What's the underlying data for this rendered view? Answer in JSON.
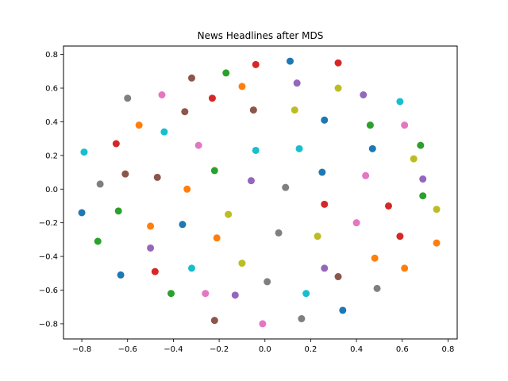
{
  "chart_data": {
    "type": "scatter",
    "title": "News Headlines after MDS",
    "xlabel": "",
    "ylabel": "",
    "xlim": [
      -0.88,
      0.84
    ],
    "ylim": [
      -0.89,
      0.85
    ],
    "grid": false,
    "xticks": [
      -0.8,
      -0.6,
      -0.4,
      -0.2,
      0.0,
      0.2,
      0.4,
      0.6,
      0.8
    ],
    "yticks": [
      -0.8,
      -0.6,
      -0.4,
      -0.2,
      0.0,
      0.2,
      0.4,
      0.6,
      0.8
    ],
    "xtick_labels": [
      "−0.8",
      "−0.6",
      "−0.4",
      "−0.2",
      "0.0",
      "0.2",
      "0.4",
      "0.6",
      "0.8"
    ],
    "ytick_labels": [
      "−0.8",
      "−0.6",
      "−0.4",
      "−0.2",
      "0.0",
      "0.2",
      "0.4",
      "0.6",
      "0.8"
    ],
    "points": [
      {
        "x": 0.11,
        "y": 0.76,
        "color": "#1f77b4"
      },
      {
        "x": 0.32,
        "y": 0.75,
        "color": "#d62728"
      },
      {
        "x": -0.04,
        "y": 0.74,
        "color": "#d62728"
      },
      {
        "x": -0.17,
        "y": 0.69,
        "color": "#2ca02c"
      },
      {
        "x": -0.32,
        "y": 0.66,
        "color": "#8c564b"
      },
      {
        "x": 0.14,
        "y": 0.63,
        "color": "#9467bd"
      },
      {
        "x": -0.1,
        "y": 0.61,
        "color": "#ff7f0e"
      },
      {
        "x": 0.32,
        "y": 0.6,
        "color": "#bcbd22"
      },
      {
        "x": 0.43,
        "y": 0.56,
        "color": "#9467bd"
      },
      {
        "x": -0.45,
        "y": 0.56,
        "color": "#e377c2"
      },
      {
        "x": -0.6,
        "y": 0.54,
        "color": "#7f7f7f"
      },
      {
        "x": -0.23,
        "y": 0.54,
        "color": "#d62728"
      },
      {
        "x": 0.59,
        "y": 0.52,
        "color": "#17becf"
      },
      {
        "x": -0.05,
        "y": 0.47,
        "color": "#8c564b"
      },
      {
        "x": 0.13,
        "y": 0.47,
        "color": "#bcbd22"
      },
      {
        "x": -0.35,
        "y": 0.46,
        "color": "#8c564b"
      },
      {
        "x": 0.26,
        "y": 0.41,
        "color": "#1f77b4"
      },
      {
        "x": 0.46,
        "y": 0.38,
        "color": "#2ca02c"
      },
      {
        "x": -0.55,
        "y": 0.38,
        "color": "#ff7f0e"
      },
      {
        "x": 0.61,
        "y": 0.38,
        "color": "#e377c2"
      },
      {
        "x": -0.44,
        "y": 0.34,
        "color": "#17becf"
      },
      {
        "x": -0.65,
        "y": 0.27,
        "color": "#d62728"
      },
      {
        "x": 0.68,
        "y": 0.26,
        "color": "#2ca02c"
      },
      {
        "x": -0.29,
        "y": 0.26,
        "color": "#e377c2"
      },
      {
        "x": 0.47,
        "y": 0.24,
        "color": "#1f77b4"
      },
      {
        "x": 0.15,
        "y": 0.24,
        "color": "#17becf"
      },
      {
        "x": -0.04,
        "y": 0.23,
        "color": "#17becf"
      },
      {
        "x": -0.79,
        "y": 0.22,
        "color": "#17becf"
      },
      {
        "x": 0.65,
        "y": 0.18,
        "color": "#bcbd22"
      },
      {
        "x": -0.22,
        "y": 0.11,
        "color": "#2ca02c"
      },
      {
        "x": 0.25,
        "y": 0.1,
        "color": "#1f77b4"
      },
      {
        "x": -0.61,
        "y": 0.09,
        "color": "#8c564b"
      },
      {
        "x": 0.44,
        "y": 0.08,
        "color": "#e377c2"
      },
      {
        "x": -0.47,
        "y": 0.07,
        "color": "#8c564b"
      },
      {
        "x": 0.69,
        "y": 0.06,
        "color": "#9467bd"
      },
      {
        "x": -0.06,
        "y": 0.05,
        "color": "#9467bd"
      },
      {
        "x": -0.72,
        "y": 0.03,
        "color": "#7f7f7f"
      },
      {
        "x": 0.09,
        "y": 0.01,
        "color": "#7f7f7f"
      },
      {
        "x": -0.34,
        "y": 0.0,
        "color": "#ff7f0e"
      },
      {
        "x": 0.69,
        "y": -0.04,
        "color": "#2ca02c"
      },
      {
        "x": 0.26,
        "y": -0.09,
        "color": "#d62728"
      },
      {
        "x": 0.54,
        "y": -0.1,
        "color": "#d62728"
      },
      {
        "x": -0.64,
        "y": -0.13,
        "color": "#2ca02c"
      },
      {
        "x": 0.75,
        "y": -0.12,
        "color": "#bcbd22"
      },
      {
        "x": -0.8,
        "y": -0.14,
        "color": "#1f77b4"
      },
      {
        "x": -0.16,
        "y": -0.15,
        "color": "#bcbd22"
      },
      {
        "x": 0.4,
        "y": -0.2,
        "color": "#e377c2"
      },
      {
        "x": -0.36,
        "y": -0.21,
        "color": "#1f77b4"
      },
      {
        "x": -0.5,
        "y": -0.22,
        "color": "#ff7f0e"
      },
      {
        "x": 0.06,
        "y": -0.26,
        "color": "#7f7f7f"
      },
      {
        "x": 0.59,
        "y": -0.28,
        "color": "#d62728"
      },
      {
        "x": 0.23,
        "y": -0.28,
        "color": "#bcbd22"
      },
      {
        "x": -0.21,
        "y": -0.29,
        "color": "#ff7f0e"
      },
      {
        "x": -0.73,
        "y": -0.31,
        "color": "#2ca02c"
      },
      {
        "x": 0.75,
        "y": -0.32,
        "color": "#ff7f0e"
      },
      {
        "x": -0.5,
        "y": -0.35,
        "color": "#9467bd"
      },
      {
        "x": 0.48,
        "y": -0.41,
        "color": "#ff7f0e"
      },
      {
        "x": -0.1,
        "y": -0.44,
        "color": "#bcbd22"
      },
      {
        "x": -0.32,
        "y": -0.47,
        "color": "#17becf"
      },
      {
        "x": 0.26,
        "y": -0.47,
        "color": "#9467bd"
      },
      {
        "x": 0.61,
        "y": -0.47,
        "color": "#ff7f0e"
      },
      {
        "x": -0.48,
        "y": -0.49,
        "color": "#d62728"
      },
      {
        "x": -0.63,
        "y": -0.51,
        "color": "#1f77b4"
      },
      {
        "x": 0.32,
        "y": -0.52,
        "color": "#8c564b"
      },
      {
        "x": 0.01,
        "y": -0.55,
        "color": "#7f7f7f"
      },
      {
        "x": 0.49,
        "y": -0.59,
        "color": "#7f7f7f"
      },
      {
        "x": -0.41,
        "y": -0.62,
        "color": "#2ca02c"
      },
      {
        "x": -0.26,
        "y": -0.62,
        "color": "#e377c2"
      },
      {
        "x": 0.18,
        "y": -0.62,
        "color": "#17becf"
      },
      {
        "x": -0.13,
        "y": -0.63,
        "color": "#9467bd"
      },
      {
        "x": 0.34,
        "y": -0.72,
        "color": "#1f77b4"
      },
      {
        "x": 0.16,
        "y": -0.77,
        "color": "#7f7f7f"
      },
      {
        "x": -0.22,
        "y": -0.78,
        "color": "#8c564b"
      },
      {
        "x": -0.01,
        "y": -0.8,
        "color": "#e377c2"
      }
    ]
  }
}
